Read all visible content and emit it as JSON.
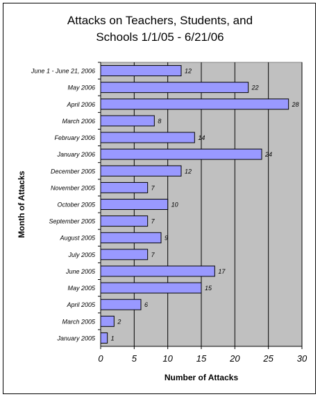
{
  "chart_data": {
    "type": "bar",
    "orientation": "horizontal",
    "title_line1": "Attacks on Teachers, Students, and",
    "title_line2": "Schools 1/1/05 - 6/21/06",
    "xlabel": "Number of Attacks",
    "ylabel": "Month of Attacks",
    "xlim": [
      0,
      30
    ],
    "xticks": [
      "0",
      "5",
      "10",
      "15",
      "20",
      "25",
      "30"
    ],
    "grid": true,
    "legend": "none",
    "colors": {
      "bar": "#9999ff",
      "plot_bg": "#c0c0c0",
      "bar_border": "#000000"
    },
    "categories": [
      "June 1 - June 21, 2006",
      "May 2006",
      "April 2006",
      "March 2006",
      "February 2006",
      "January 2006",
      "December 2005",
      "November 2005",
      "October 2005",
      "September 2005",
      "August 2005",
      "July 2005",
      "June 2005",
      "May 2005",
      "April 2005",
      "March 2005",
      "January 2005"
    ],
    "values": [
      12,
      22,
      28,
      8,
      14,
      24,
      12,
      7,
      10,
      7,
      9,
      7,
      17,
      15,
      6,
      2,
      1
    ],
    "data_labels": [
      "12",
      "22",
      "28",
      "8",
      "14",
      "24",
      "12",
      "7",
      "10",
      "7",
      "9",
      "7",
      "17",
      "15",
      "6",
      "2",
      "1"
    ]
  }
}
